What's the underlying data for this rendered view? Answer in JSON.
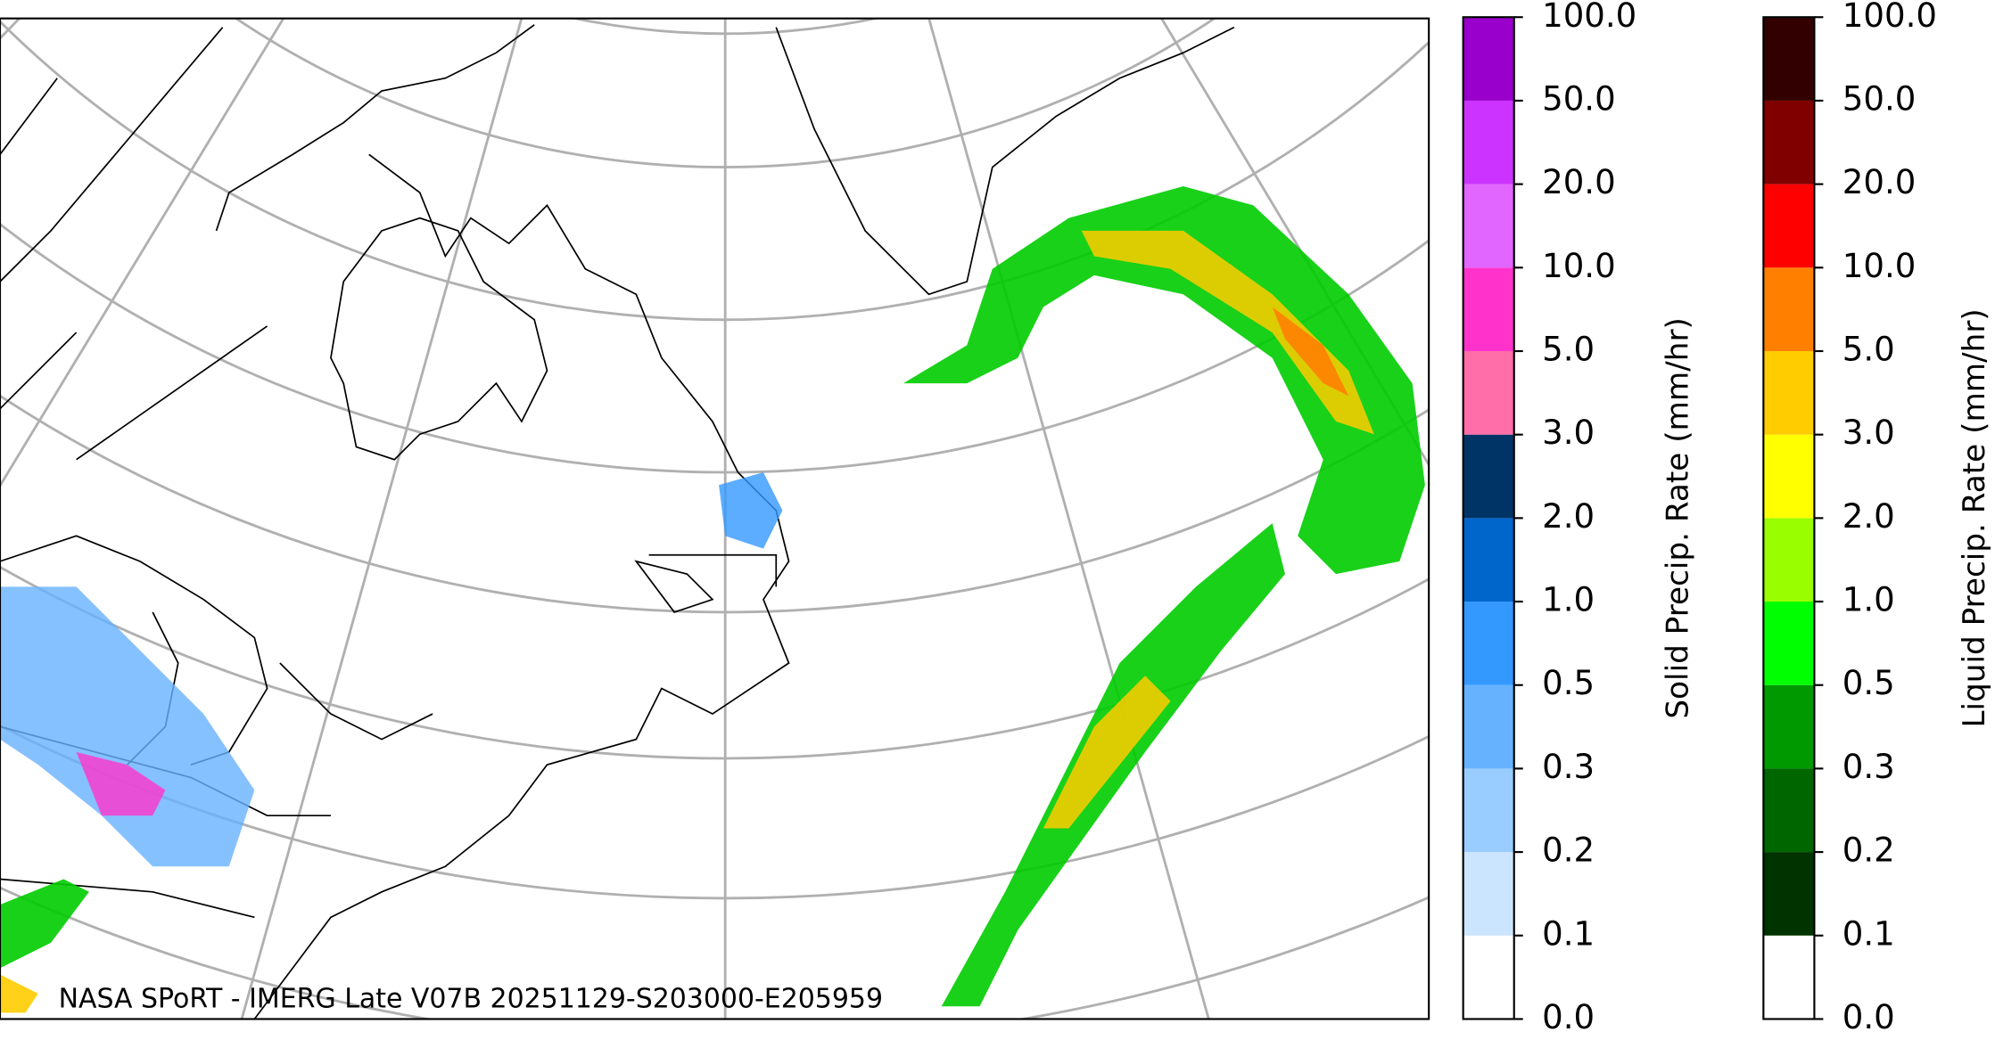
{
  "caption": "NASA SPoRT - IMERG Late V07B 20251129-S203000-E205959",
  "colorbars": [
    {
      "label": "Solid Precip. Rate (mm/hr)",
      "ticks": [
        {
          "value": 0,
          "label": "0.0"
        },
        {
          "value": 0.1,
          "label": "0.1"
        },
        {
          "value": 0.2,
          "label": "0.2"
        },
        {
          "value": 0.3,
          "label": "0.3"
        },
        {
          "value": 0.5,
          "label": "0.5"
        },
        {
          "value": 1,
          "label": "1.0"
        },
        {
          "value": 2,
          "label": "2.0"
        },
        {
          "value": 3,
          "label": "3.0"
        },
        {
          "value": 5,
          "label": "5.0"
        },
        {
          "value": 10,
          "label": "10.0"
        },
        {
          "value": 20,
          "label": "20.0"
        },
        {
          "value": 50,
          "label": "50.0"
        },
        {
          "value": 100,
          "label": "100.0"
        }
      ],
      "colors": [
        "#ffffff",
        "#cce5ff",
        "#99ccff",
        "#66b2ff",
        "#3399ff",
        "#0066cc",
        "#003366",
        "#ff6ea8",
        "#ff33cc",
        "#e066ff",
        "#cc33ff",
        "#9900cc"
      ]
    },
    {
      "label": "Liquid Precip. Rate (mm/hr)",
      "ticks": [
        {
          "value": 0,
          "label": "0.0"
        },
        {
          "value": 0.1,
          "label": "0.1"
        },
        {
          "value": 0.2,
          "label": "0.2"
        },
        {
          "value": 0.3,
          "label": "0.3"
        },
        {
          "value": 0.5,
          "label": "0.5"
        },
        {
          "value": 1,
          "label": "1.0"
        },
        {
          "value": 2,
          "label": "2.0"
        },
        {
          "value": 3,
          "label": "3.0"
        },
        {
          "value": 5,
          "label": "5.0"
        },
        {
          "value": 10,
          "label": "10.0"
        },
        {
          "value": 20,
          "label": "20.0"
        },
        {
          "value": 50,
          "label": "50.0"
        },
        {
          "value": 100,
          "label": "100.0"
        }
      ],
      "colors": [
        "#ffffff",
        "#003300",
        "#006600",
        "#009900",
        "#00ff00",
        "#99ff00",
        "#ffff00",
        "#ffcc00",
        "#ff8000",
        "#ff0000",
        "#800000",
        "#330000"
      ]
    }
  ]
}
